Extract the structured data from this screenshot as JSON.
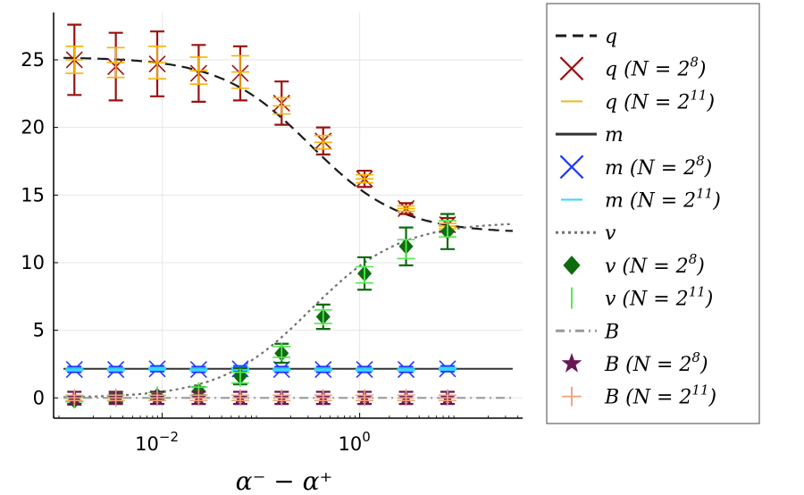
{
  "chart_data": {
    "type": "scatter",
    "title": "",
    "xlabel": "α⁻ − α⁺",
    "ylabel": "",
    "xscale": "log",
    "xlim_log10": [
      -3.1,
      1.65
    ],
    "ylim": [
      -1.5,
      28.5
    ],
    "grid": true,
    "legend_position": "outside-right",
    "x_ticks": [
      {
        "value_log10": -2,
        "label": "10",
        "exp": "−2"
      },
      {
        "value_log10": 0,
        "label": "10",
        "exp": "0"
      }
    ],
    "y_ticks": [
      0,
      5,
      10,
      15,
      20,
      25
    ],
    "x_points": [
      0.00129,
      0.00339,
      0.00891,
      0.0234,
      0.0617,
      0.162,
      0.427,
      1.12,
      2.95,
      7.76
    ],
    "curves": [
      {
        "name": "q",
        "style": "dash",
        "color": "#1a1a1a",
        "a": 25.2,
        "b": 12.2
      },
      {
        "name": "m",
        "style": "solid",
        "color": "#333333",
        "a": 2.15,
        "b": 2.15
      },
      {
        "name": "v",
        "style": "dot",
        "color": "#707070",
        "a": 0.0,
        "b": 13.0
      },
      {
        "name": "B",
        "style": "dashdot",
        "color": "#9a9a9a",
        "a": 0.0,
        "b": 0.0
      }
    ],
    "series": [
      {
        "name": "q (N=2^8)",
        "marker": "x",
        "color": "#9b1111",
        "values": [
          25.0,
          24.5,
          24.7,
          24.0,
          24.0,
          21.8,
          19.0,
          16.2,
          14.0,
          12.8
        ],
        "errors": [
          2.6,
          2.5,
          2.4,
          2.1,
          2.0,
          1.6,
          1.0,
          0.6,
          0.4,
          0.5
        ]
      },
      {
        "name": "q (N=2^11)",
        "marker": "hline",
        "color": "#f5b400",
        "values": [
          25.0,
          24.8,
          24.8,
          24.2,
          24.1,
          21.6,
          18.9,
          16.2,
          14.0,
          12.7
        ],
        "errors": [
          1.0,
          1.1,
          1.2,
          1.0,
          1.2,
          0.6,
          0.5,
          0.3,
          0.2,
          0.2
        ]
      },
      {
        "name": "m (N=2^8)",
        "marker": "x",
        "color": "#1f39ff",
        "values": [
          2.1,
          2.1,
          2.15,
          2.1,
          2.15,
          2.1,
          2.1,
          2.1,
          2.1,
          2.15
        ],
        "errors": [
          0.2,
          0.2,
          0.2,
          0.2,
          0.2,
          0.2,
          0.2,
          0.2,
          0.2,
          0.2
        ]
      },
      {
        "name": "m (N=2^11)",
        "marker": "hline",
        "color": "#33d6ff",
        "values": [
          2.1,
          2.1,
          2.15,
          2.1,
          2.15,
          2.1,
          2.1,
          2.1,
          2.1,
          2.15
        ],
        "errors": [
          0.1,
          0.1,
          0.1,
          0.1,
          0.1,
          0.1,
          0.1,
          0.1,
          0.1,
          0.1
        ]
      },
      {
        "name": "v (N=2^8)",
        "marker": "diamond",
        "color": "#0e6b0e",
        "values": [
          -0.2,
          0.0,
          0.15,
          0.5,
          1.6,
          3.3,
          6.0,
          9.2,
          11.2,
          12.3
        ],
        "errors": [
          0.3,
          0.3,
          0.3,
          0.3,
          0.6,
          0.7,
          0.9,
          1.2,
          1.4,
          1.3
        ]
      },
      {
        "name": "v (N=2^11)",
        "marker": "vline",
        "color": "#52e852",
        "values": [
          -0.1,
          0.0,
          0.2,
          0.5,
          1.5,
          3.4,
          6.0,
          9.1,
          11.0,
          12.5
        ],
        "errors": [
          0.2,
          0.2,
          0.2,
          0.3,
          0.4,
          0.4,
          0.5,
          0.6,
          0.7,
          0.6
        ]
      },
      {
        "name": "B (N=2^8)",
        "marker": "star",
        "color": "#6a1656",
        "values": [
          0.0,
          0.0,
          0.0,
          0.0,
          0.0,
          0.0,
          0.0,
          0.0,
          0.0,
          0.0
        ],
        "errors": [
          0.45,
          0.45,
          0.45,
          0.45,
          0.45,
          0.45,
          0.45,
          0.45,
          0.45,
          0.45
        ]
      },
      {
        "name": "B (N=2^11)",
        "marker": "plus",
        "color": "#f4a37a",
        "values": [
          0.0,
          0.0,
          0.0,
          0.0,
          0.0,
          0.0,
          0.0,
          0.0,
          0.0,
          0.0
        ],
        "errors": [
          0.2,
          0.2,
          0.2,
          0.2,
          0.2,
          0.2,
          0.2,
          0.2,
          0.2,
          0.2
        ]
      }
    ],
    "legend": [
      {
        "symbol": "dash",
        "color": "#1a1a1a",
        "var": "q",
        "n": ""
      },
      {
        "symbol": "x",
        "color": "#9b1111",
        "var": "q",
        "n": "8"
      },
      {
        "symbol": "hline",
        "color": "#f5b400",
        "var": "q",
        "n": "11"
      },
      {
        "symbol": "solid",
        "color": "#333333",
        "var": "m",
        "n": ""
      },
      {
        "symbol": "x",
        "color": "#1f39ff",
        "var": "m",
        "n": "8"
      },
      {
        "symbol": "hline",
        "color": "#33d6ff",
        "var": "m",
        "n": "11"
      },
      {
        "symbol": "dot",
        "color": "#707070",
        "var": "v",
        "n": ""
      },
      {
        "symbol": "diamond",
        "color": "#0e6b0e",
        "var": "v",
        "n": "8"
      },
      {
        "symbol": "vline",
        "color": "#52e852",
        "var": "v",
        "n": "11"
      },
      {
        "symbol": "dashdot",
        "color": "#9a9a9a",
        "var": "B",
        "n": ""
      },
      {
        "symbol": "star",
        "color": "#6a1656",
        "var": "B",
        "n": "8"
      },
      {
        "symbol": "plus",
        "color": "#f4a37a",
        "var": "B",
        "n": "11"
      }
    ]
  }
}
